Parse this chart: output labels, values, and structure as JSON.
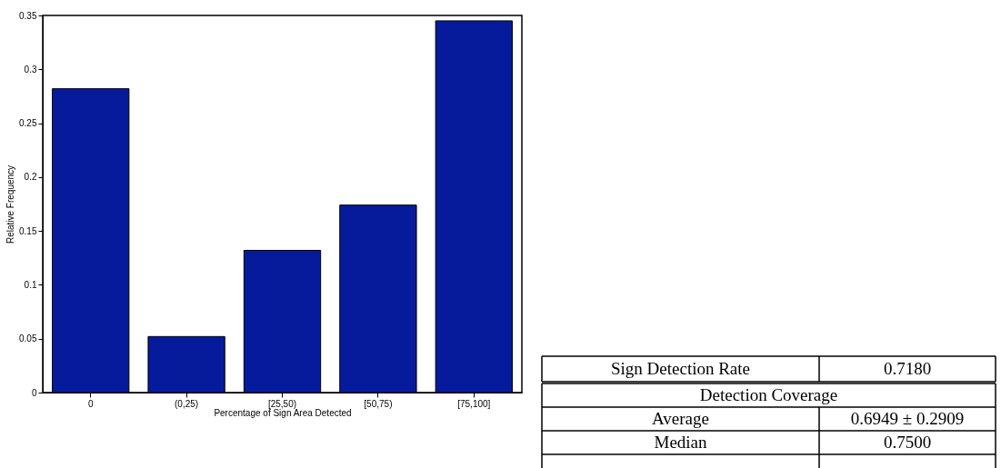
{
  "chart_data": [
    {
      "type": "bar",
      "xlabel": "Percentage of Sign Area Detected",
      "ylabel": "Relative Frequency",
      "categories": [
        "0",
        "(0,25)",
        "[25,50)",
        "[50,75)",
        "[75,100]"
      ],
      "values": [
        0.282,
        0.052,
        0.132,
        0.174,
        0.345
      ],
      "color": "#061a9c",
      "ylim": [
        0,
        0.35
      ],
      "yticks": [
        0,
        0.05,
        0.1,
        0.15,
        0.2,
        0.25,
        0.3,
        0.35
      ],
      "grid": false
    },
    {
      "type": "other",
      "annotations": [
        "Sign Detection Rate",
        "0.7180",
        "Detection Coverage",
        "Average",
        "0.6949 ± 0.2909",
        "Median",
        "0.7500"
      ]
    }
  ]
}
